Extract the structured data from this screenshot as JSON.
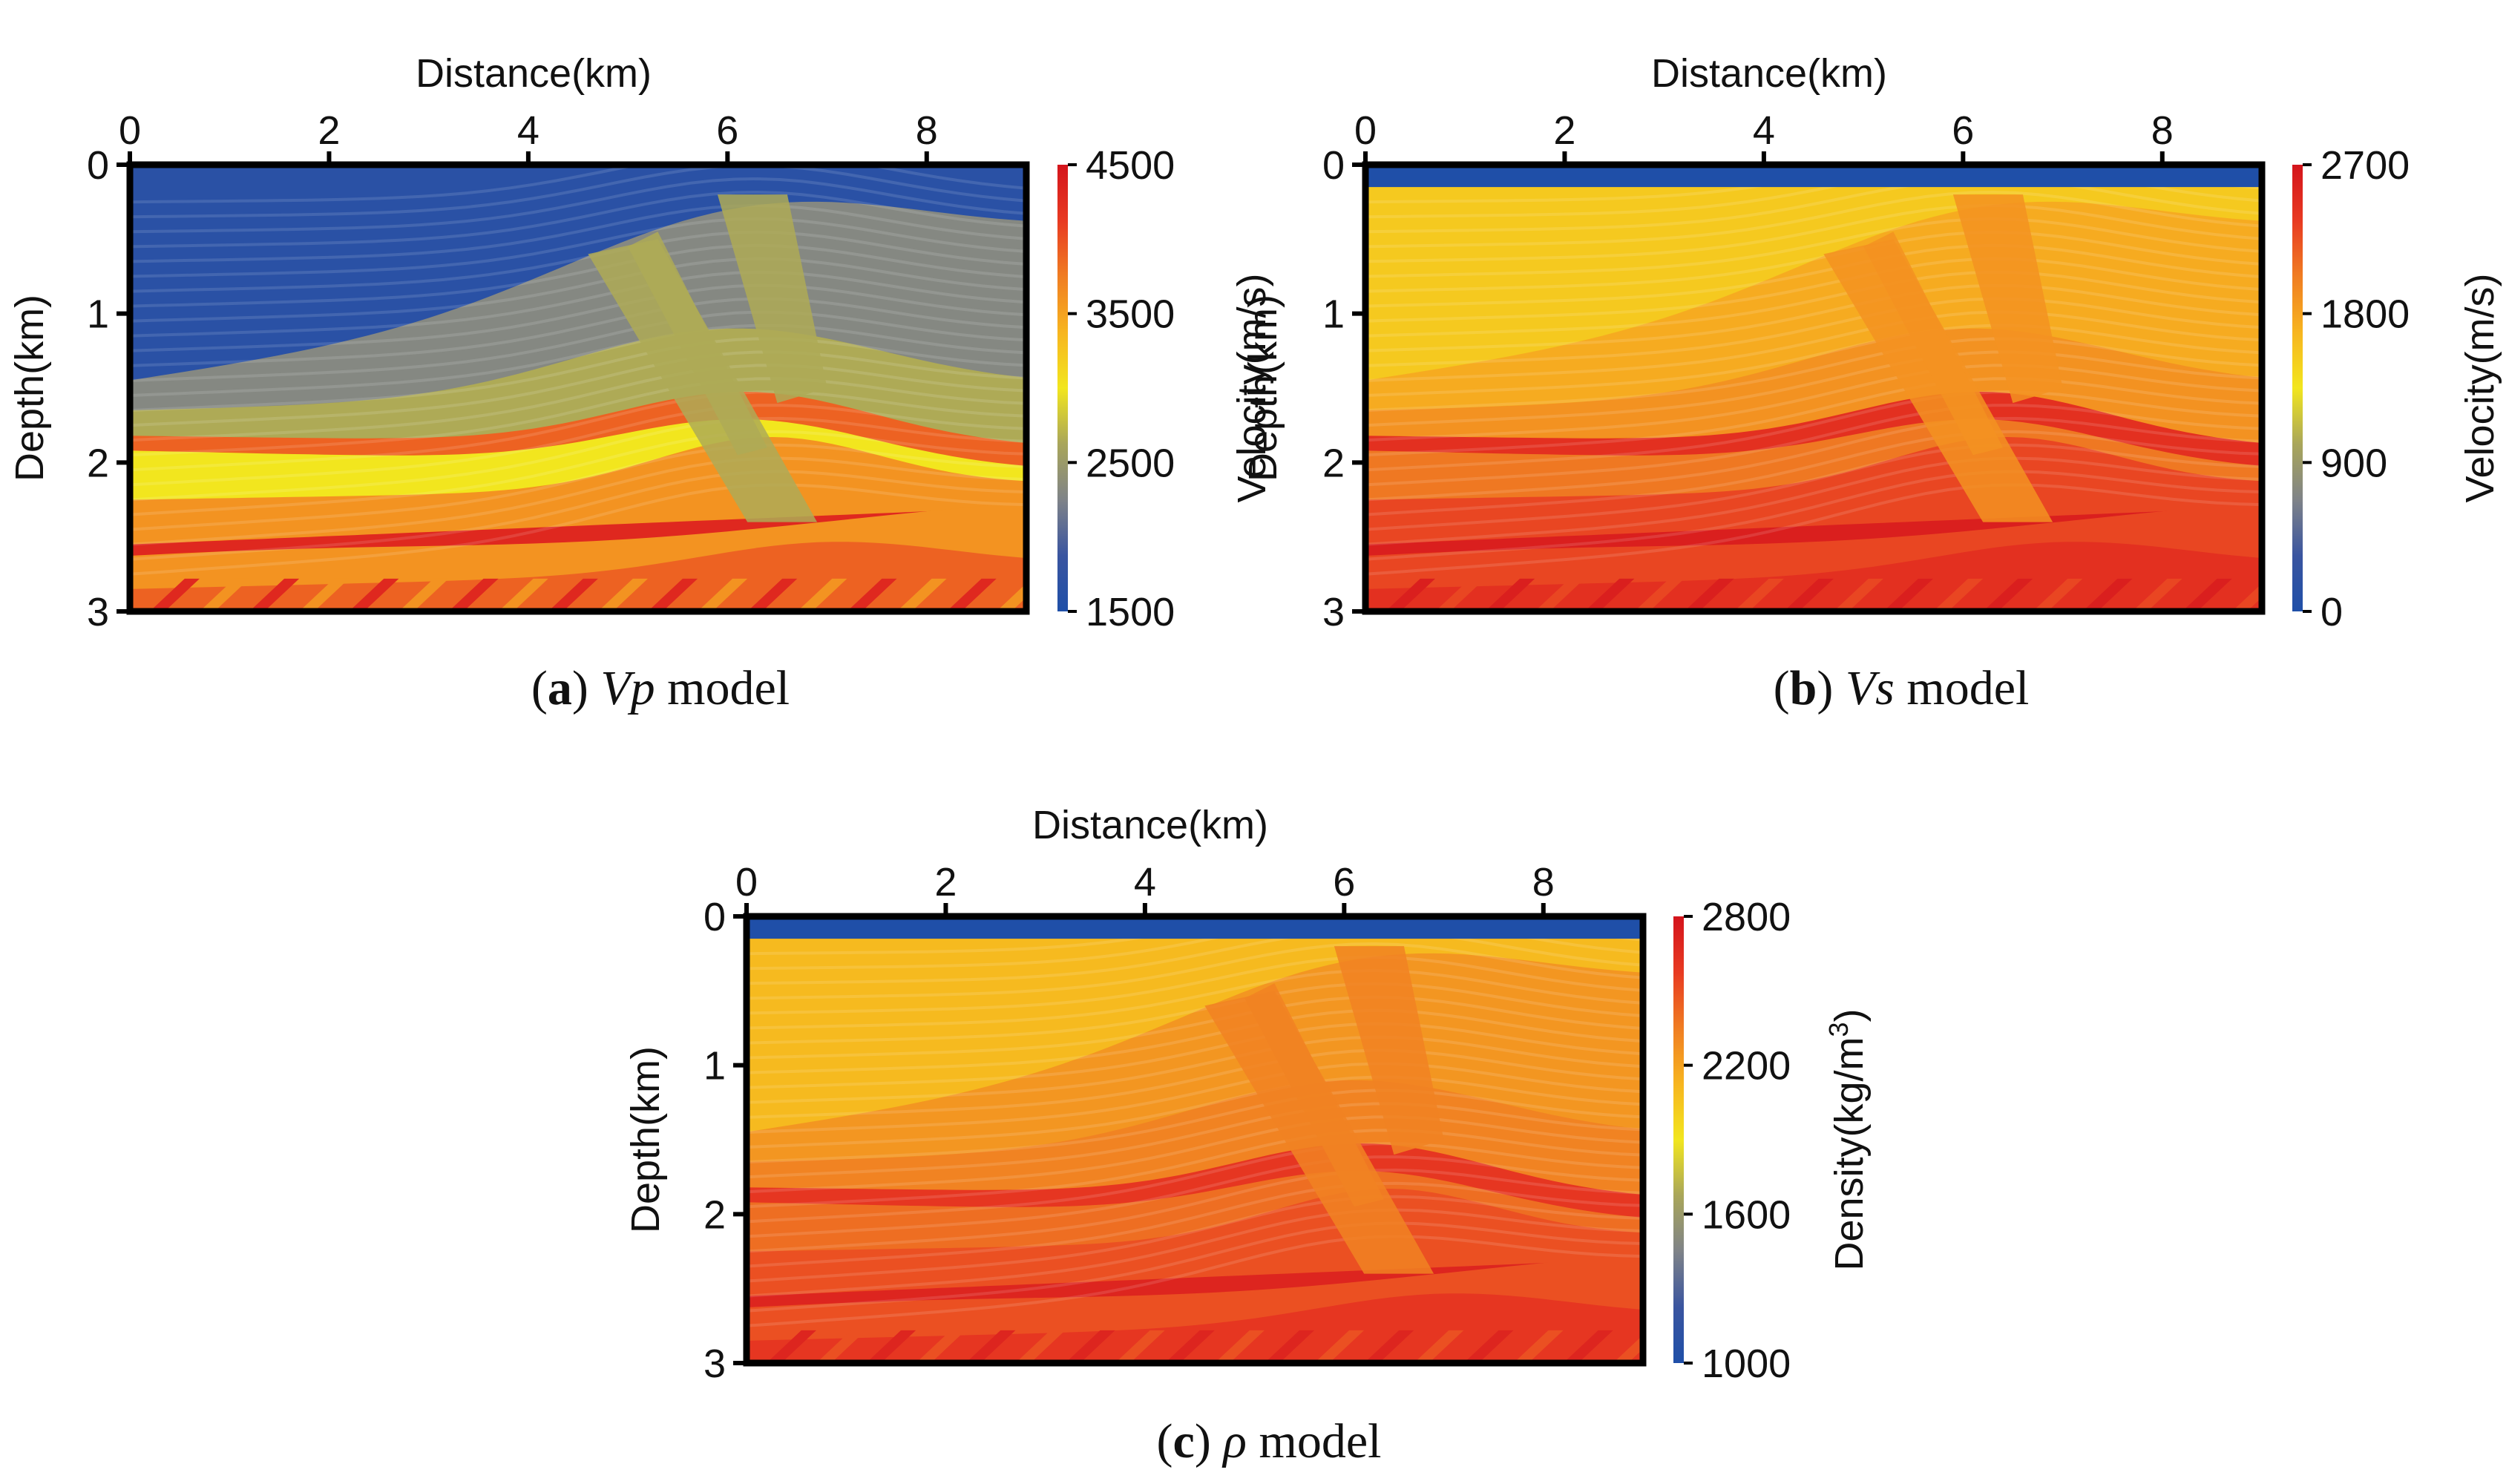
{
  "figure": {
    "panels": [
      {
        "caption": {
          "letter": "a",
          "symbol": "Vp",
          "suffix": "model"
        }
      },
      {
        "caption": {
          "letter": "b",
          "symbol": "Vs",
          "suffix": "model"
        }
      },
      {
        "caption": {
          "letter": "c",
          "symbol": "ρ",
          "suffix": "model"
        }
      }
    ]
  },
  "chart_data": [
    {
      "type": "heatmap",
      "title": "Vp model",
      "xlabel": "Distance(km)",
      "ylabel": "Depth(km)",
      "xlim": [
        0,
        9
      ],
      "ylim": [
        3,
        0
      ],
      "xticks": [
        0,
        2,
        4,
        6,
        8
      ],
      "yticks": [
        0,
        1,
        2,
        3
      ],
      "water_layer_depth": 0,
      "colorbar": {
        "label": "Velocity(m/s)",
        "min": 1500,
        "max": 4500,
        "ticks": [
          1500,
          2500,
          3500,
          4500
        ],
        "colors": [
          "#1f4fa8",
          "#3a55a0",
          "#7f8388",
          "#a9a65a",
          "#f2e61e",
          "#f7b51f",
          "#f07d22",
          "#e83a22",
          "#d4141c"
        ]
      },
      "layer_values": [
        1650,
        2300,
        3000,
        3600,
        3900,
        4300
      ]
    },
    {
      "type": "heatmap",
      "title": "Vs model",
      "xlabel": "Distance(km)",
      "ylabel": "Depth(km)",
      "xlim": [
        0,
        9
      ],
      "ylim": [
        3,
        0
      ],
      "xticks": [
        0,
        2,
        4,
        6,
        8
      ],
      "yticks": [
        0,
        1,
        2,
        3
      ],
      "water_layer_depth": 0.15,
      "colorbar": {
        "label": "Velocity(m/s)",
        "min": 0,
        "max": 2700,
        "ticks": [
          0,
          900,
          1800,
          2700
        ],
        "colors": [
          "#1f4fa8",
          "#3a55a0",
          "#7f8388",
          "#a9a65a",
          "#f2e61e",
          "#f7b51f",
          "#f07d22",
          "#e83a22",
          "#d4141c"
        ]
      },
      "layer_values": [
        1550,
        1750,
        2050,
        2300,
        2450,
        2600
      ]
    },
    {
      "type": "heatmap",
      "title": "ρ model",
      "xlabel": "Distance(km)",
      "ylabel": "Depth(km)",
      "xlim": [
        0,
        9
      ],
      "ylim": [
        3,
        0
      ],
      "xticks": [
        0,
        2,
        4,
        6,
        8
      ],
      "yticks": [
        0,
        1,
        2,
        3
      ],
      "water_layer_depth": 0.15,
      "colorbar": {
        "label": "Density(kg/m³)",
        "label_main": "Density(kg/m",
        "label_sup": "3",
        "label_end": ")",
        "min": 1000,
        "max": 2800,
        "ticks": [
          1000,
          1600,
          2200,
          2800
        ],
        "colors": [
          "#1f4fa8",
          "#3a55a0",
          "#7f8388",
          "#a9a65a",
          "#f2e61e",
          "#f7b51f",
          "#f07d22",
          "#e83a22",
          "#d4141c"
        ]
      },
      "layer_values": [
        2100,
        2250,
        2400,
        2500,
        2600,
        2700
      ]
    }
  ]
}
